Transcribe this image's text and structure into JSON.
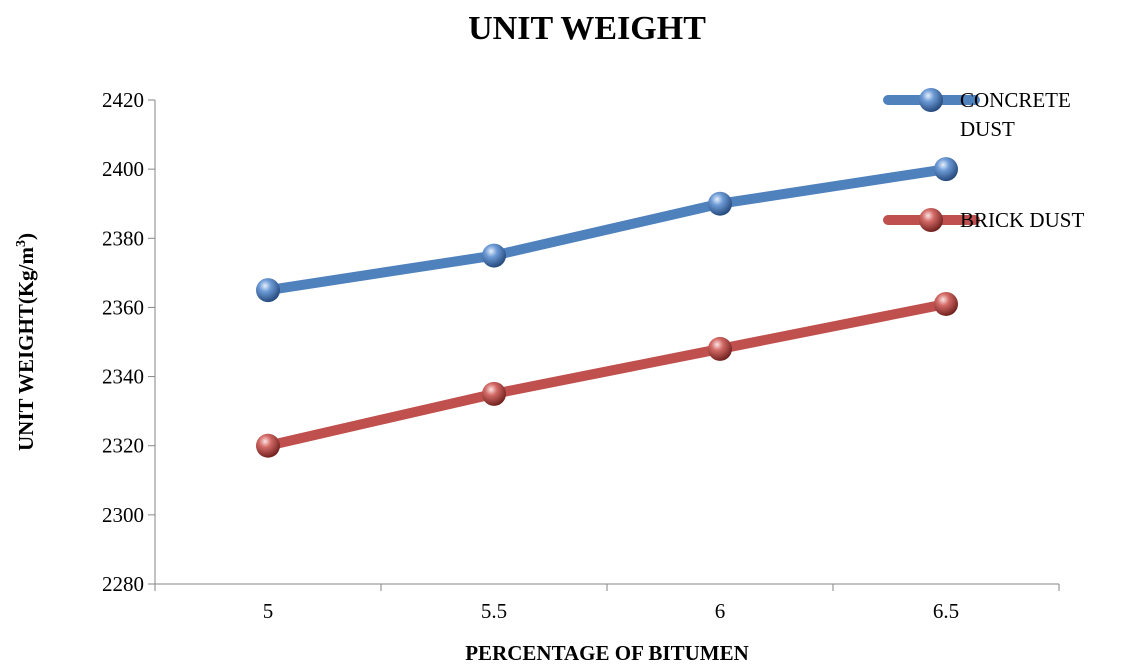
{
  "chart_data": {
    "type": "line",
    "title": "UNIT WEIGHT",
    "xlabel": "PERCENTAGE OF BITUMEN",
    "ylabel_main": "UNIT WEIGHT(Kg/m",
    "ylabel_sup": "3",
    "ylabel_close": ")",
    "categories": [
      "5",
      "5.5",
      "6",
      "6.5"
    ],
    "ylim": [
      2280,
      2420
    ],
    "yticks": [
      "2280",
      "2300",
      "2320",
      "2340",
      "2360",
      "2380",
      "2400",
      "2420"
    ],
    "grid": false,
    "legend_position": "right",
    "series": [
      {
        "name_lines": [
          "CONCRETE",
          "DUST"
        ],
        "values": [
          2365,
          2375,
          2390,
          2400
        ],
        "color": "#4f81bd"
      },
      {
        "name_lines": [
          "BRICK DUST"
        ],
        "values": [
          2320,
          2335,
          2348,
          2361
        ],
        "color": "#c0504d"
      }
    ]
  }
}
